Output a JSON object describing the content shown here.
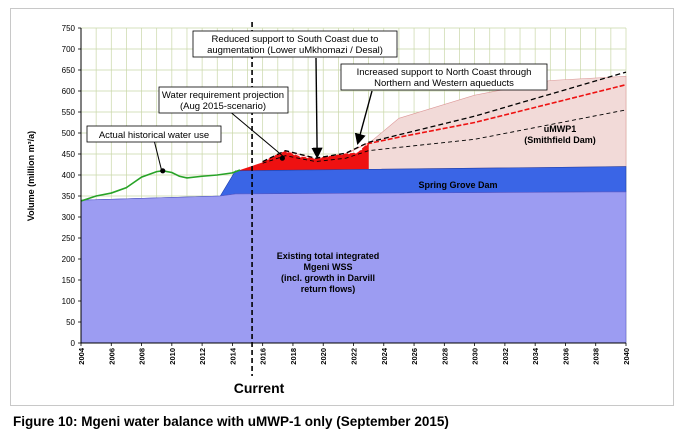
{
  "caption": "Figure 10: Mgeni water balance with uMWP-1 only (September 2015)",
  "colors": {
    "existing_fill": "#9c9cf2",
    "spring_grove_fill": "#3a65e6",
    "deficit_fill": "#ee1111",
    "umwp1_fill": "#f2dad8",
    "historical_line": "#27a327",
    "projection_line": "#ee1111",
    "dashed_line": "#000000",
    "grid": "#c9d7a8",
    "current_line": "#000000"
  },
  "chart_data": {
    "type": "area",
    "title": "",
    "xlabel": "",
    "ylabel": "Volume (million m³/a)",
    "xlim": [
      2004,
      2040
    ],
    "ylim": [
      0,
      750
    ],
    "x_ticks": [
      2004,
      2006,
      2008,
      2010,
      2012,
      2014,
      2016,
      2018,
      2020,
      2022,
      2024,
      2026,
      2028,
      2030,
      2032,
      2034,
      2036,
      2038,
      2040
    ],
    "y_ticks": [
      0,
      50,
      100,
      150,
      200,
      250,
      300,
      350,
      400,
      450,
      500,
      550,
      600,
      650,
      700,
      750
    ],
    "grid": true,
    "current_year": 2015.3,
    "current_label": "Current",
    "areas": [
      {
        "name": "Existing total integrated Mgeni WSS",
        "x": [
          2004,
          2013.2,
          2014.2,
          2040
        ],
        "y": [
          340,
          350,
          355,
          360
        ]
      },
      {
        "name": "Spring Grove Dam",
        "x": [
          2004,
          2013.2,
          2014.2,
          2040
        ],
        "y": [
          340,
          350,
          410,
          420
        ]
      },
      {
        "name": "uMWP1 (Smithfield Dam)",
        "x": [
          2023,
          2040
        ],
        "y": [
          475,
          635
        ]
      }
    ],
    "deficit_area": {
      "x": [
        2014.5,
        2016,
        2017,
        2017.5,
        2018.5,
        2019.5,
        2020.5,
        2021.5,
        2022.3,
        2023
      ],
      "y": [
        412,
        430,
        448,
        455,
        442,
        438,
        444,
        449,
        452,
        475
      ]
    },
    "series": [
      {
        "name": "Actual historical water use",
        "x": [
          2004,
          2005,
          2006,
          2007,
          2008,
          2009,
          2009.4,
          2010,
          2010.5,
          2011,
          2012,
          2013,
          2014,
          2014.5
        ],
        "y": [
          338,
          350,
          357,
          370,
          395,
          408,
          410,
          406,
          397,
          393,
          397,
          400,
          405,
          412
        ]
      },
      {
        "name": "Water requirement projection (Aug 2015-scenario)",
        "x": [
          2016,
          2017,
          2017.5,
          2018.5,
          2019.5,
          2020.5,
          2021.5,
          2022.3,
          2023,
          2025,
          2030,
          2035,
          2040
        ],
        "y": [
          430,
          448,
          455,
          442,
          438,
          444,
          449,
          452,
          475,
          490,
          525,
          570,
          615
        ]
      },
      {
        "name": "Upper dashed",
        "x": [
          2016,
          2017.5,
          2019.5,
          2021.5,
          2023,
          2030,
          2040
        ],
        "y": [
          432,
          458,
          440,
          452,
          478,
          540,
          645
        ]
      },
      {
        "name": "Lower dashed",
        "x": [
          2016,
          2017.5,
          2019.5,
          2021.5,
          2023,
          2030,
          2040
        ],
        "y": [
          428,
          446,
          432,
          440,
          458,
          485,
          555
        ]
      }
    ],
    "markers": [
      {
        "x": 2009.4,
        "y": 410
      },
      {
        "x": 2017.3,
        "y": 440
      }
    ],
    "area_labels": {
      "existing": [
        "Existing total integrated",
        "Mgeni WSS",
        "(incl. growth in Darvill",
        "return flows)"
      ],
      "spring_grove": "Spring Grove Dam",
      "umwp1": [
        "uMWP1",
        "(Smithfield Dam)"
      ]
    },
    "annotations": [
      {
        "text": "Actual historical water use"
      },
      {
        "text": "Water requirement projection (Aug 2015-scenario)"
      },
      {
        "text": "Reduced support to South Coast due to augmentation (Lower uMkhomazi / Desal)"
      },
      {
        "text": "Increased support to North Coast through Northern and Western aqueducts"
      }
    ]
  },
  "annot_text": {
    "historical": "Actual historical water use",
    "projection_1": "Water requirement projection",
    "projection_2": "(Aug 2015-scenario)",
    "south_1": "Reduced support to South Coast due to",
    "south_2": "augmentation (Lower uMkhomazi / Desal)",
    "north_1": "Increased support to North Coast through",
    "north_2": "Northern and Western aqueducts"
  }
}
